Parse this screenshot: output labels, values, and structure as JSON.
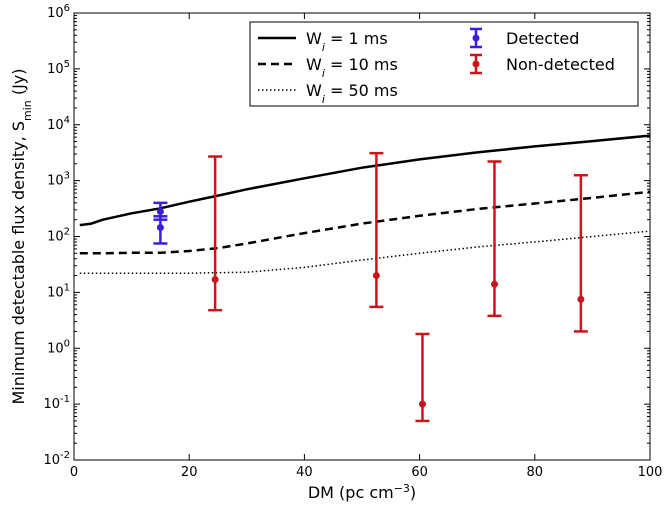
{
  "chart_data": {
    "type": "line",
    "xlabel": "DM (pc cm",
    "xlabel_sup": "−3",
    "xlabel_end": ")",
    "ylabel": "Minimum detectable flux density, S",
    "ylabel_sub": "min",
    "ylabel_end": " (Jy)",
    "xlim": [
      0,
      100
    ],
    "ylim": [
      0.01,
      1000000
    ],
    "yscale": "log",
    "x_ticks": [
      0,
      20,
      40,
      60,
      80,
      100
    ],
    "x_tick_labels": [
      "0",
      "20",
      "40",
      "60",
      "80",
      "100"
    ],
    "y_ticks": [
      0.01,
      0.1,
      1,
      10,
      100,
      1000,
      10000,
      100000,
      1000000
    ],
    "y_tick_mantissa": "10",
    "y_tick_exponents": [
      "-2",
      "-1",
      "0",
      "1",
      "2",
      "3",
      "4",
      "5",
      "6"
    ],
    "grid": false,
    "legend_position": "top-right",
    "series": [
      {
        "name": "W",
        "name_sub": "i",
        "name_tail": " = 1 ms",
        "style": "solid",
        "color": "#000000",
        "x": [
          1,
          3,
          5,
          10,
          15,
          20,
          25,
          30,
          40,
          50,
          60,
          70,
          80,
          90,
          100
        ],
        "y": [
          160,
          170,
          200,
          260,
          320,
          420,
          540,
          700,
          1100,
          1700,
          2400,
          3200,
          4100,
          5100,
          6400
        ]
      },
      {
        "name": "W",
        "name_sub": "i",
        "name_tail": " = 10 ms",
        "style": "dashed",
        "color": "#000000",
        "x": [
          1,
          5,
          10,
          15,
          20,
          25,
          30,
          40,
          50,
          60,
          70,
          80,
          90,
          100
        ],
        "y": [
          50,
          50,
          51,
          51,
          55,
          62,
          75,
          115,
          170,
          235,
          310,
          390,
          490,
          630
        ]
      },
      {
        "name": "W",
        "name_sub": "i",
        "name_tail": " = 50 ms",
        "style": "dotted",
        "color": "#000000",
        "x": [
          1,
          10,
          20,
          30,
          40,
          50,
          60,
          70,
          80,
          90,
          100
        ],
        "y": [
          22,
          22,
          22,
          23,
          28,
          38,
          50,
          65,
          80,
          100,
          125
        ]
      },
      {
        "name": "Detected",
        "style": "errorbar",
        "color": "#3a1fd8",
        "points": [
          {
            "x": 15,
            "y": 280,
            "lo": 200,
            "hi": 400
          },
          {
            "x": 15,
            "y": 145,
            "lo": 75,
            "hi": 230
          }
        ]
      },
      {
        "name": "Non-detected",
        "style": "errorbar",
        "color": "#c8171a",
        "points": [
          {
            "x": 24.5,
            "y": 17,
            "lo": 4.8,
            "hi": 2700
          },
          {
            "x": 52.5,
            "y": 20,
            "lo": 5.5,
            "hi": 3100
          },
          {
            "x": 60.5,
            "y": 0.1,
            "lo": 0.05,
            "hi": 1.8
          },
          {
            "x": 73,
            "y": 14,
            "lo": 3.8,
            "hi": 2200
          },
          {
            "x": 88,
            "y": 7.5,
            "lo": 2.0,
            "hi": 1250
          }
        ]
      }
    ]
  }
}
